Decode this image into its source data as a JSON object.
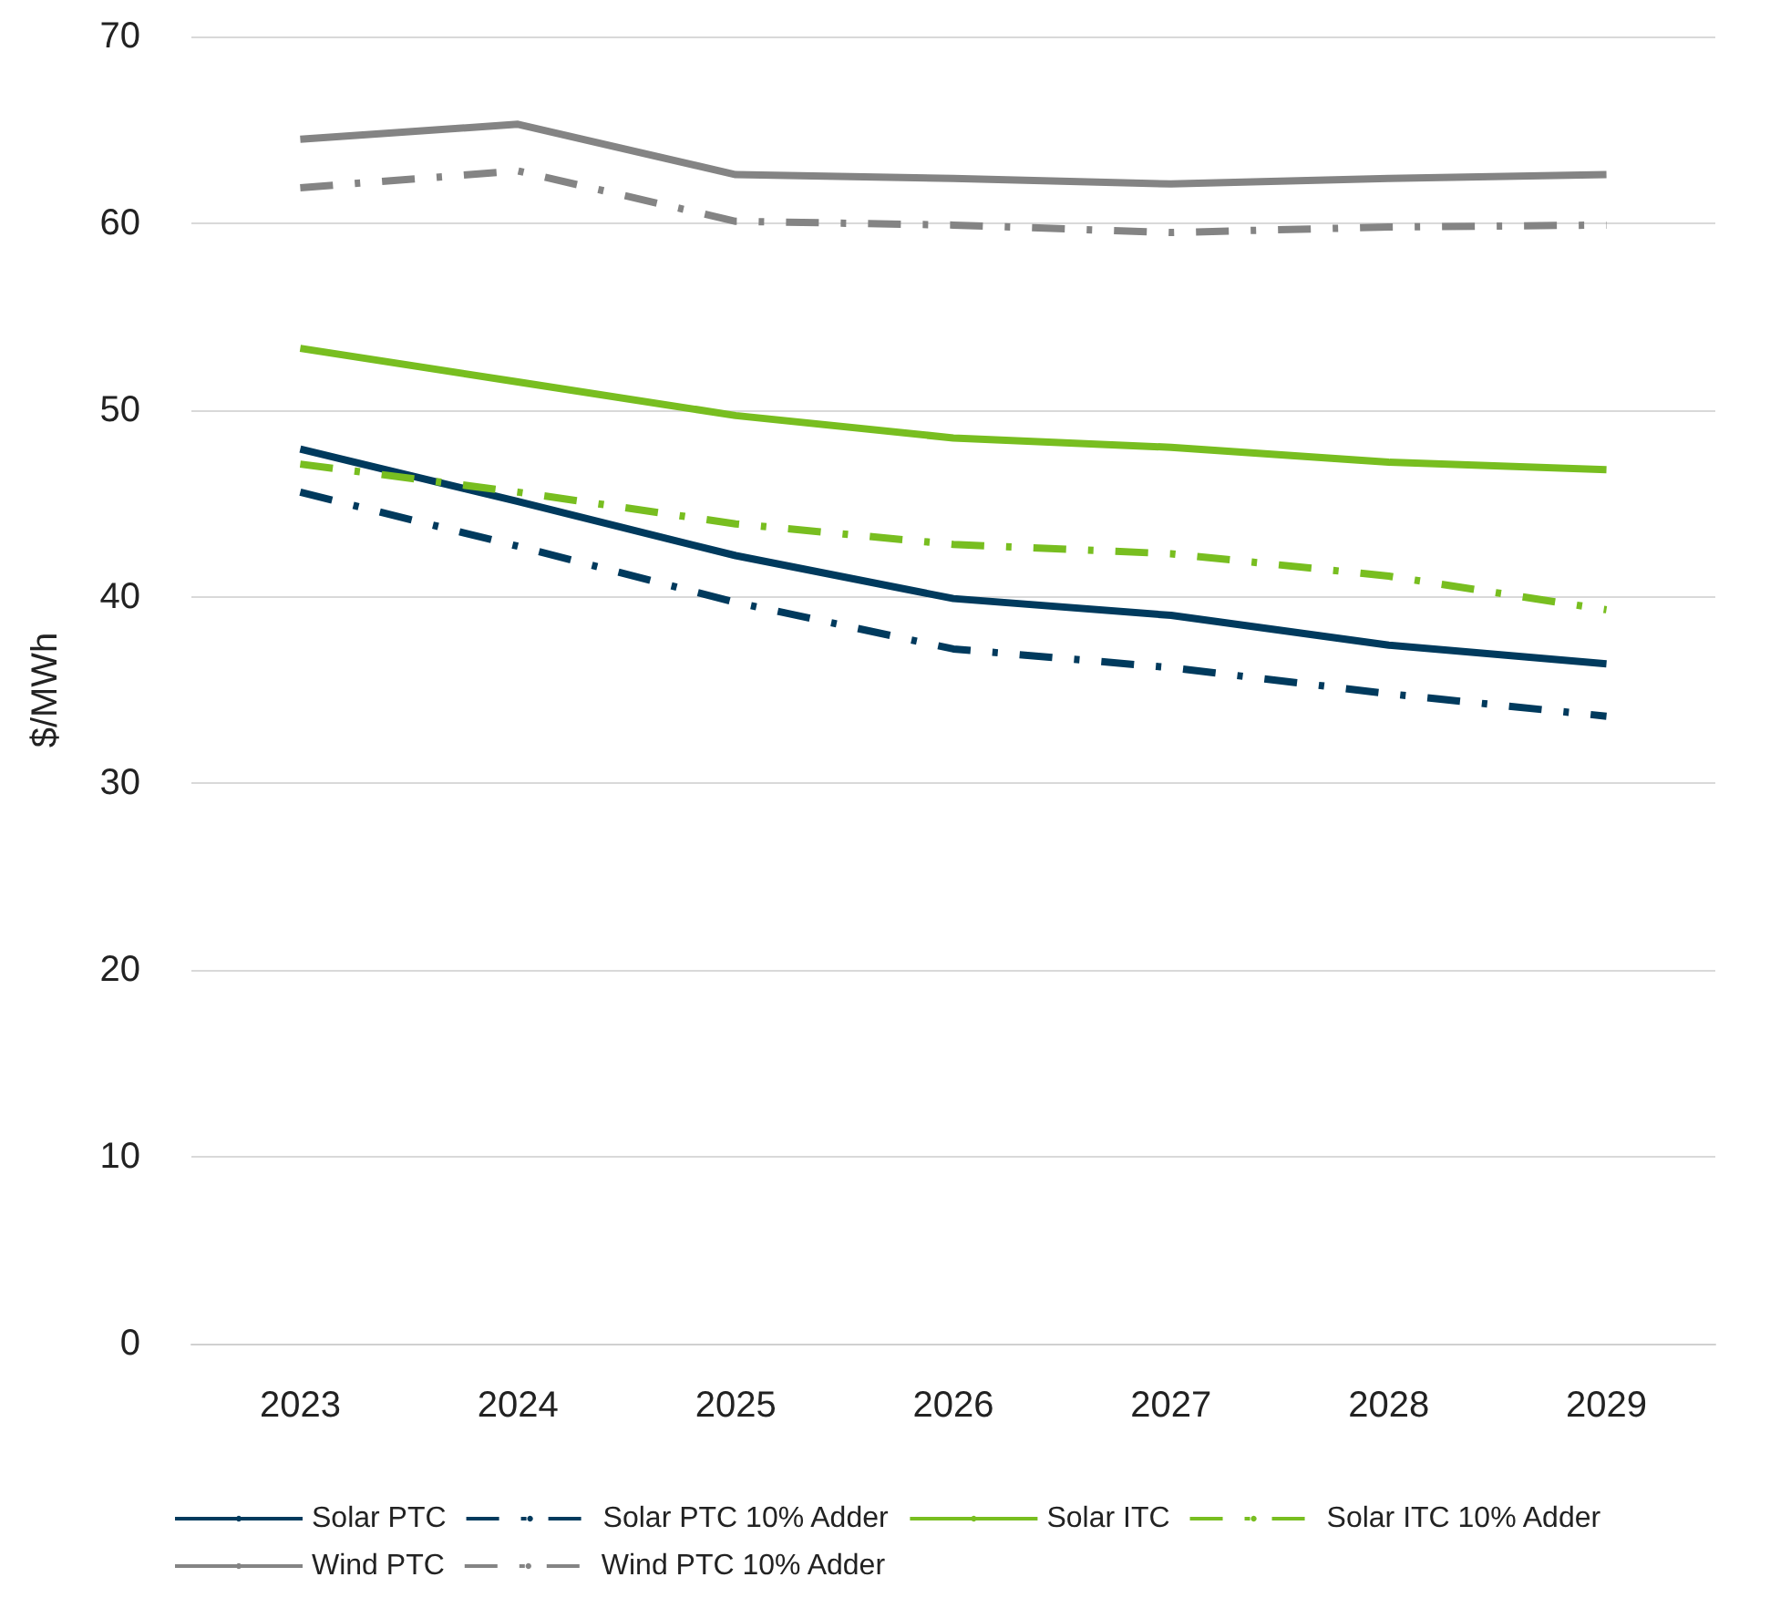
{
  "chart_data": {
    "type": "line",
    "ylabel": "$/MWh",
    "categories": [
      "2023",
      "2024",
      "2025",
      "2026",
      "2027",
      "2028",
      "2029"
    ],
    "ylim": [
      0,
      70
    ],
    "yticks": [
      0,
      10,
      20,
      30,
      40,
      50,
      60,
      70
    ],
    "grid": "y",
    "legend": "bottom",
    "marker": "none",
    "series": [
      {
        "name": "Solar PTC",
        "color": "#003a5d",
        "line_style": "solid",
        "values": [
          47.9,
          45.1,
          42.2,
          39.9,
          39.0,
          37.4,
          36.4
        ]
      },
      {
        "name": "Solar PTC 10% Adder",
        "color": "#003a5d",
        "line_style": "dashed",
        "values": [
          45.6,
          42.7,
          39.7,
          37.2,
          36.2,
          34.8,
          33.6
        ]
      },
      {
        "name": "Solar ITC",
        "color": "#78be20",
        "line_style": "solid",
        "values": [
          53.3,
          51.5,
          49.7,
          48.5,
          48.0,
          47.2,
          46.8
        ]
      },
      {
        "name": "Solar ITC 10% Adder",
        "color": "#78be20",
        "line_style": "dashed",
        "values": [
          47.1,
          45.6,
          43.9,
          42.8,
          42.3,
          41.1,
          39.3
        ]
      },
      {
        "name": "Wind PTC",
        "color": "#848484",
        "line_style": "solid",
        "values": [
          64.5,
          65.3,
          62.6,
          62.4,
          62.1,
          62.4,
          62.6
        ]
      },
      {
        "name": "Wind PTC 10% Adder",
        "color": "#848484",
        "line_style": "dashed",
        "values": [
          61.9,
          62.8,
          60.1,
          59.9,
          59.5,
          59.8,
          59.9
        ]
      }
    ]
  }
}
